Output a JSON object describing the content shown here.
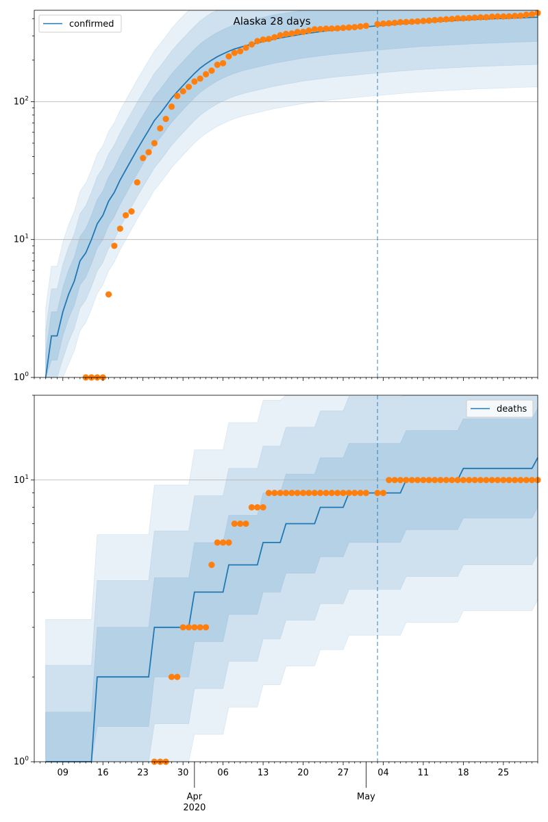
{
  "chart_data": [
    {
      "type": "line",
      "title": "Alaska 28 days",
      "scale": "log",
      "ylim": [
        1,
        460
      ],
      "xlim": [
        "2020-03-04",
        "2020-05-31"
      ],
      "forecast_start": "2020-05-03",
      "grid": "y-major",
      "legend": {
        "position": "top-left",
        "label": "confirmed"
      },
      "colors": {
        "line": "#1f77b4",
        "points": "#ff7f0e",
        "band": "#1f77b4"
      },
      "y_ticks": [
        {
          "value": 1,
          "base": "10",
          "exp": "0"
        },
        {
          "value": 10,
          "base": "10",
          "exp": "1"
        },
        {
          "value": 100,
          "base": "10",
          "exp": "2"
        }
      ],
      "series": [
        {
          "name": "confirmed",
          "kind": "line",
          "x": [
            "2020-03-06",
            "2020-03-07",
            "2020-03-08",
            "2020-03-09",
            "2020-03-10",
            "2020-03-11",
            "2020-03-12",
            "2020-03-13",
            "2020-03-14",
            "2020-03-15",
            "2020-03-16",
            "2020-03-17",
            "2020-03-18",
            "2020-03-19",
            "2020-03-20",
            "2020-03-21",
            "2020-03-22",
            "2020-03-23",
            "2020-03-24",
            "2020-03-25",
            "2020-03-26",
            "2020-03-27",
            "2020-03-28",
            "2020-03-29",
            "2020-03-30",
            "2020-03-31",
            "2020-04-01",
            "2020-04-02",
            "2020-04-03",
            "2020-04-04",
            "2020-04-05",
            "2020-04-06",
            "2020-04-07",
            "2020-04-08",
            "2020-04-10",
            "2020-04-15",
            "2020-04-20",
            "2020-04-25",
            "2020-05-02",
            "2020-05-10",
            "2020-05-20",
            "2020-05-31"
          ],
          "values": [
            1,
            2,
            2,
            3,
            4,
            5,
            7,
            8,
            10,
            13,
            15,
            19,
            22,
            27,
            32,
            38,
            45,
            53,
            62,
            73,
            82,
            93,
            106,
            118,
            131,
            145,
            160,
            175,
            188,
            200,
            212,
            222,
            232,
            241,
            255,
            285,
            310,
            330,
            352,
            375,
            395,
            410
          ]
        },
        {
          "name": "",
          "kind": "points",
          "x": [
            "2020-03-13",
            "2020-03-14",
            "2020-03-15",
            "2020-03-16",
            "2020-03-17",
            "2020-03-18",
            "2020-03-19",
            "2020-03-20",
            "2020-03-21",
            "2020-03-22",
            "2020-03-23",
            "2020-03-24",
            "2020-03-25",
            "2020-03-26",
            "2020-03-27",
            "2020-03-28",
            "2020-03-29",
            "2020-03-30",
            "2020-03-31",
            "2020-04-01",
            "2020-04-02",
            "2020-04-03",
            "2020-04-04",
            "2020-04-05",
            "2020-04-06",
            "2020-04-07",
            "2020-04-08",
            "2020-04-09",
            "2020-04-10",
            "2020-04-11",
            "2020-04-12",
            "2020-04-13",
            "2020-04-14",
            "2020-04-15",
            "2020-04-16",
            "2020-04-17",
            "2020-04-18",
            "2020-04-19",
            "2020-04-20",
            "2020-04-21",
            "2020-04-22",
            "2020-04-23",
            "2020-04-24",
            "2020-04-25",
            "2020-04-26",
            "2020-04-27",
            "2020-04-28",
            "2020-04-29",
            "2020-04-30",
            "2020-05-01",
            "2020-05-03",
            "2020-05-04",
            "2020-05-05",
            "2020-05-06",
            "2020-05-07",
            "2020-05-08",
            "2020-05-09",
            "2020-05-10",
            "2020-05-11",
            "2020-05-12",
            "2020-05-13",
            "2020-05-14",
            "2020-05-15",
            "2020-05-16",
            "2020-05-17",
            "2020-05-18",
            "2020-05-19",
            "2020-05-20",
            "2020-05-21",
            "2020-05-22",
            "2020-05-23",
            "2020-05-24",
            "2020-05-25",
            "2020-05-26",
            "2020-05-27",
            "2020-05-28",
            "2020-05-29",
            "2020-05-30",
            "2020-05-31"
          ],
          "values": [
            1,
            1,
            1,
            1,
            4,
            9,
            12,
            15,
            16,
            26,
            39,
            43,
            50,
            64,
            75,
            92,
            110,
            119,
            128,
            140,
            147,
            158,
            168,
            185,
            190,
            213,
            226,
            232,
            246,
            260,
            275,
            282,
            285,
            293,
            303,
            310,
            312,
            320,
            321,
            328,
            335,
            336,
            338,
            339,
            340,
            343,
            345,
            347,
            351,
            355,
            365,
            368,
            370,
            373,
            377,
            378,
            380,
            382,
            385,
            387,
            390,
            393,
            396,
            398,
            402,
            402,
            404,
            407,
            409,
            410,
            413,
            415,
            415,
            416,
            419,
            420,
            427,
            430,
            440
          ]
        }
      ]
    },
    {
      "type": "line",
      "title": "",
      "scale": "log",
      "ylim": [
        1,
        20
      ],
      "xlim": [
        "2020-03-04",
        "2020-05-31"
      ],
      "forecast_start": "2020-05-03",
      "grid": "y-major",
      "legend": {
        "position": "top-right",
        "label": "deaths"
      },
      "colors": {
        "line": "#1f77b4",
        "points": "#ff7f0e",
        "band": "#1f77b4"
      },
      "y_ticks": [
        {
          "value": 1,
          "base": "10",
          "exp": "0"
        },
        {
          "value": 10,
          "base": "10",
          "exp": "1"
        }
      ],
      "x_ticks": [
        {
          "date": "2020-03-09",
          "label": "09"
        },
        {
          "date": "2020-03-16",
          "label": "16"
        },
        {
          "date": "2020-03-23",
          "label": "23"
        },
        {
          "date": "2020-03-30",
          "label": "30"
        },
        {
          "date": "2020-04-06",
          "label": "06"
        },
        {
          "date": "2020-04-13",
          "label": "13"
        },
        {
          "date": "2020-04-20",
          "label": "20"
        },
        {
          "date": "2020-04-27",
          "label": "27"
        },
        {
          "date": "2020-05-04",
          "label": "04"
        },
        {
          "date": "2020-05-11",
          "label": "11"
        },
        {
          "date": "2020-05-18",
          "label": "18"
        },
        {
          "date": "2020-05-25",
          "label": "25"
        }
      ],
      "month_labels": [
        {
          "date": "2020-04-01",
          "label": "Apr",
          "sub": "2020"
        },
        {
          "date": "2020-05-01",
          "label": "May",
          "sub": ""
        }
      ],
      "series": [
        {
          "name": "deaths",
          "kind": "line",
          "x": [
            "2020-03-06",
            "2020-03-14",
            "2020-03-15",
            "2020-03-24",
            "2020-03-25",
            "2020-03-31",
            "2020-04-01",
            "2020-04-06",
            "2020-04-07",
            "2020-04-12",
            "2020-04-13",
            "2020-04-16",
            "2020-04-17",
            "2020-04-22",
            "2020-04-23",
            "2020-04-27",
            "2020-04-28",
            "2020-05-03",
            "2020-05-07",
            "2020-05-08",
            "2020-05-17",
            "2020-05-18",
            "2020-05-30",
            "2020-05-31"
          ],
          "values": [
            1,
            1,
            2,
            2,
            3,
            3,
            4,
            4,
            5,
            5,
            6,
            6,
            7,
            7,
            8,
            8,
            9,
            9,
            9,
            10,
            10,
            11,
            11,
            12
          ]
        },
        {
          "name": "",
          "kind": "points",
          "x": [
            "2020-03-25",
            "2020-03-26",
            "2020-03-27",
            "2020-03-28",
            "2020-03-29",
            "2020-03-30",
            "2020-03-31",
            "2020-04-01",
            "2020-04-02",
            "2020-04-03",
            "2020-04-04",
            "2020-04-05",
            "2020-04-06",
            "2020-04-07",
            "2020-04-08",
            "2020-04-09",
            "2020-04-10",
            "2020-04-11",
            "2020-04-12",
            "2020-04-13",
            "2020-04-14",
            "2020-04-15",
            "2020-04-16",
            "2020-04-17",
            "2020-04-18",
            "2020-04-19",
            "2020-04-20",
            "2020-04-21",
            "2020-04-22",
            "2020-04-23",
            "2020-04-24",
            "2020-04-25",
            "2020-04-26",
            "2020-04-27",
            "2020-04-28",
            "2020-04-29",
            "2020-04-30",
            "2020-05-01",
            "2020-05-03",
            "2020-05-04",
            "2020-05-05",
            "2020-05-06",
            "2020-05-07",
            "2020-05-08",
            "2020-05-09",
            "2020-05-10",
            "2020-05-11",
            "2020-05-12",
            "2020-05-13",
            "2020-05-14",
            "2020-05-15",
            "2020-05-16",
            "2020-05-17",
            "2020-05-18",
            "2020-05-19",
            "2020-05-20",
            "2020-05-21",
            "2020-05-22",
            "2020-05-23",
            "2020-05-24",
            "2020-05-25",
            "2020-05-26",
            "2020-05-27",
            "2020-05-28",
            "2020-05-29",
            "2020-05-30",
            "2020-05-31"
          ],
          "values": [
            1,
            1,
            1,
            2,
            2,
            3,
            3,
            3,
            3,
            3,
            5,
            6,
            6,
            6,
            7,
            7,
            7,
            8,
            8,
            8,
            9,
            9,
            9,
            9,
            9,
            9,
            9,
            9,
            9,
            9,
            9,
            9,
            9,
            9,
            9,
            9,
            9,
            9,
            9,
            9,
            10,
            10,
            10,
            10,
            10,
            10,
            10,
            10,
            10,
            10,
            10,
            10,
            10,
            10,
            10,
            10,
            10,
            10,
            10,
            10,
            10,
            10,
            10,
            10,
            10,
            10,
            10
          ]
        }
      ]
    }
  ]
}
